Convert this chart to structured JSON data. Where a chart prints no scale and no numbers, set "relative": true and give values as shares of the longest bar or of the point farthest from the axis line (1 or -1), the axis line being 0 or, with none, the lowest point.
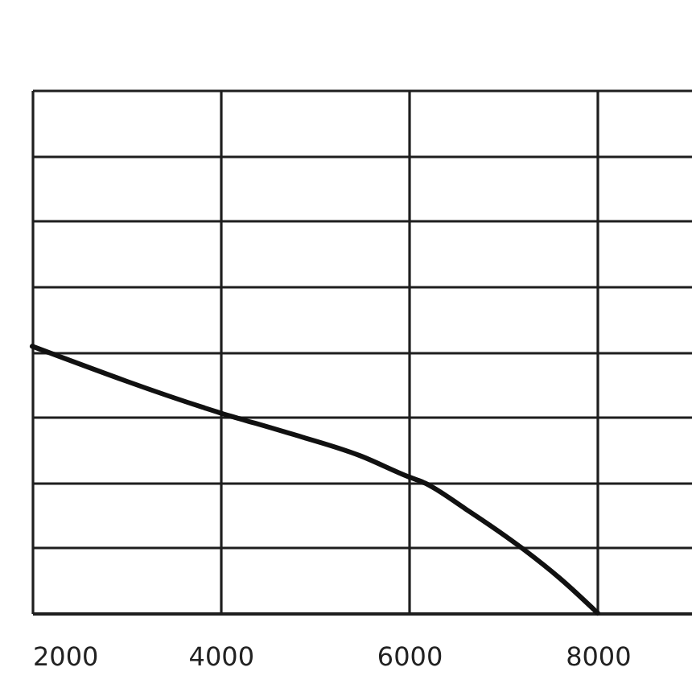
{
  "chart_data": {
    "type": "line",
    "relative": true,
    "x": [
      2000,
      4000,
      4670,
      5480,
      6000,
      6150,
      6600,
      7210,
      7600,
      8000
    ],
    "series": [
      {
        "color": "#111111",
        "values": [
          1.0,
          0.75,
          0.68,
          0.59,
          0.51,
          0.49,
          0.39,
          0.24,
          0.13,
          0
        ]
      }
    ],
    "xlim": [
      2000,
      9000
    ],
    "xticks": [
      2000,
      4000,
      6000,
      8000
    ],
    "grid": true,
    "tick_labels": "x",
    "line_style": "solid"
  }
}
